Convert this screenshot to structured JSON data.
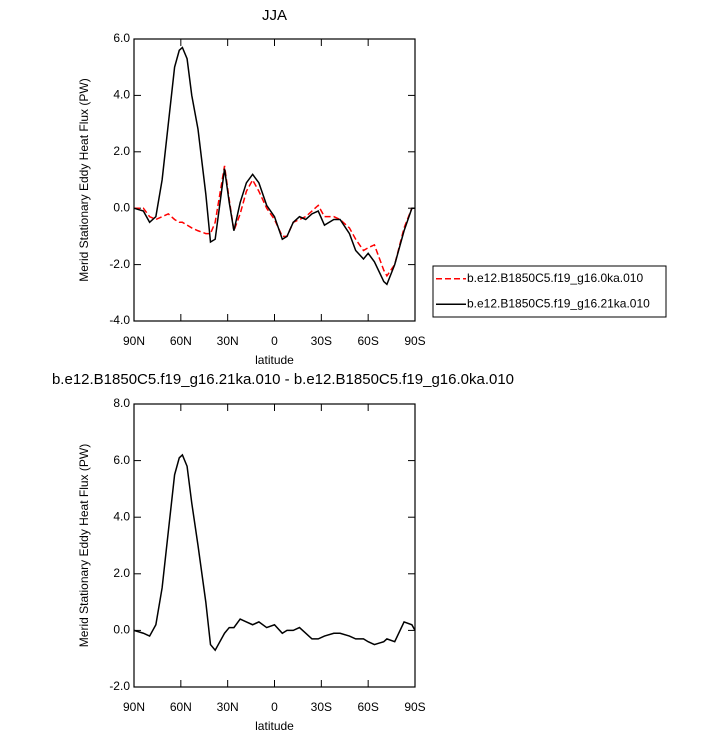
{
  "chart_data": [
    {
      "type": "line",
      "title": "JJA",
      "x_label": "latitude",
      "y_label": "Merid Stationary Eddy Heat Flux (PW)",
      "x": [
        90,
        84,
        80,
        76,
        72,
        68,
        64,
        61,
        59,
        56,
        53,
        49,
        44,
        41,
        38,
        32,
        29,
        26,
        22,
        18,
        14,
        10,
        5,
        0,
        -5,
        -8,
        -12,
        -16,
        -20,
        -24,
        -28,
        -32,
        -38,
        -42,
        -48,
        -52,
        -57,
        -60,
        -64,
        -70,
        -72,
        -77,
        -83,
        -88,
        -90
      ],
      "series": [
        {
          "name": "b.e12.B1850C5.f19_g16.0ka.010",
          "color": "#ff0000",
          "dash": "dashed",
          "values": [
            0,
            0,
            -0.3,
            -0.4,
            -0.3,
            -0.2,
            -0.4,
            -0.5,
            -0.5,
            -0.6,
            -0.7,
            -0.8,
            -0.9,
            -0.9,
            -0.5,
            1.5,
            0.3,
            -0.8,
            -0.2,
            0.6,
            1.0,
            0.6,
            0.0,
            -0.4,
            -1.0,
            -1.0,
            -0.5,
            -0.4,
            -0.3,
            -0.1,
            0.1,
            -0.3,
            -0.3,
            -0.4,
            -0.7,
            -1.1,
            -1.5,
            -1.4,
            -1.3,
            -2.2,
            -2.4,
            -2.0,
            -0.7,
            0,
            0
          ]
        },
        {
          "name": "b.e12.B1850C5.f19_g16.21ka.010",
          "color": "#000000",
          "dash": "solid",
          "values": [
            0,
            -0.1,
            -0.5,
            -0.3,
            1.0,
            3.0,
            5.0,
            5.6,
            5.7,
            5.3,
            4.0,
            2.8,
            0.5,
            -1.2,
            -1.1,
            1.4,
            0.2,
            -0.8,
            0.2,
            0.9,
            1.2,
            0.9,
            0.1,
            -0.3,
            -1.1,
            -1.0,
            -0.5,
            -0.3,
            -0.4,
            -0.2,
            -0.1,
            -0.6,
            -0.4,
            -0.4,
            -0.9,
            -1.5,
            -1.8,
            -1.6,
            -1.9,
            -2.6,
            -2.7,
            -2.0,
            -0.8,
            0,
            0
          ]
        }
      ],
      "xlim": [
        90,
        -90
      ],
      "xticks": [
        {
          "value": 90,
          "label": "90N"
        },
        {
          "value": 60,
          "label": "60N"
        },
        {
          "value": 30,
          "label": "30N"
        },
        0,
        {
          "value": -30,
          "label": "30S"
        },
        {
          "value": -60,
          "label": "60S"
        },
        {
          "value": -90,
          "label": "90S"
        }
      ],
      "ylim": [
        -4,
        6
      ],
      "yticks": [
        {
          "value": -4,
          "label": "-4.0"
        },
        {
          "value": -2,
          "label": "-2.0"
        },
        {
          "value": 0,
          "label": "0.0"
        },
        {
          "value": 2,
          "label": "2.0"
        },
        {
          "value": 4,
          "label": "4.0"
        },
        {
          "value": 6,
          "label": "6.0"
        }
      ],
      "legend": "right"
    },
    {
      "type": "line",
      "title": "b.e12.B1850C5.f19_g16.21ka.010 - b.e12.B1850C5.f19_g16.0ka.010",
      "x_label": "latitude",
      "y_label": "Merid Stationary Eddy Heat Flux (PW)",
      "x": [
        90,
        84,
        80,
        76,
        72,
        68,
        64,
        61,
        59,
        56,
        53,
        49,
        44,
        41,
        38,
        32,
        29,
        26,
        22,
        18,
        14,
        10,
        5,
        0,
        -5,
        -8,
        -12,
        -16,
        -20,
        -24,
        -28,
        -32,
        -38,
        -42,
        -48,
        -52,
        -57,
        -60,
        -64,
        -70,
        -72,
        -77,
        -83,
        -88,
        -90
      ],
      "series": [
        {
          "color": "#000000",
          "dash": "solid",
          "values": [
            0,
            -0.1,
            -0.2,
            0.2,
            1.5,
            3.5,
            5.5,
            6.1,
            6.2,
            5.8,
            4.5,
            3.0,
            1.0,
            -0.5,
            -0.7,
            -0.1,
            0.1,
            0.1,
            0.4,
            0.3,
            0.2,
            0.3,
            0.1,
            0.2,
            -0.1,
            0,
            0,
            0.1,
            -0.1,
            -0.3,
            -0.3,
            -0.2,
            -0.1,
            -0.1,
            -0.2,
            -0.3,
            -0.3,
            -0.4,
            -0.5,
            -0.4,
            -0.3,
            -0.4,
            0.3,
            0.2,
            0
          ]
        }
      ],
      "xlim": [
        90,
        -90
      ],
      "xticks": [
        {
          "value": 90,
          "label": "90N"
        },
        {
          "value": 60,
          "label": "60N"
        },
        {
          "value": 30,
          "label": "30N"
        },
        0,
        {
          "value": -30,
          "label": "30S"
        },
        {
          "value": -60,
          "label": "60S"
        },
        {
          "value": -90,
          "label": "90S"
        }
      ],
      "ylim": [
        -2,
        8
      ],
      "yticks": [
        {
          "value": -2,
          "label": "-2.0"
        },
        {
          "value": 0,
          "label": "0.0"
        },
        {
          "value": 2,
          "label": "2.0"
        },
        {
          "value": 4,
          "label": "4.0"
        },
        {
          "value": 6,
          "label": "6.0"
        },
        {
          "value": 8,
          "label": "8.0"
        }
      ]
    }
  ]
}
